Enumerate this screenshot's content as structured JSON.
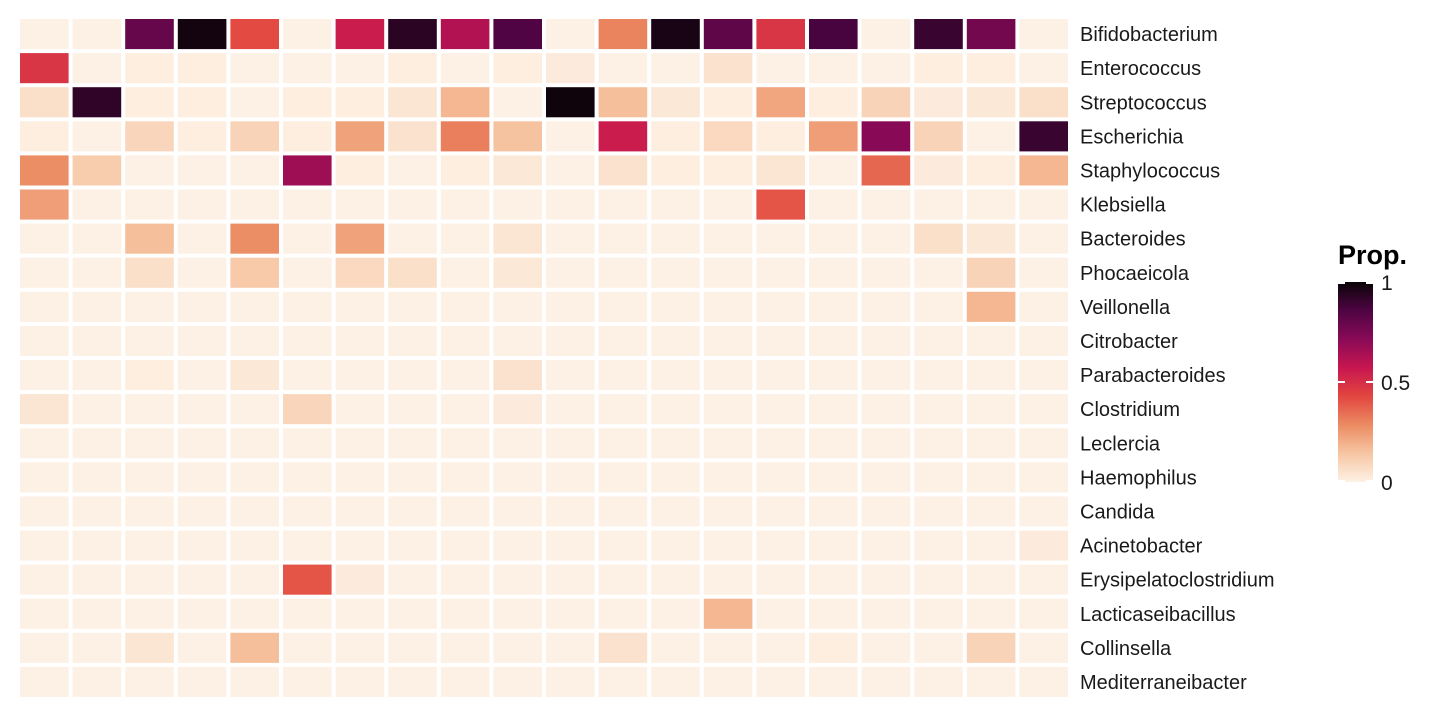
{
  "chart_data": {
    "type": "heatmap",
    "title": "",
    "xlabel": "",
    "ylabel": "",
    "rows": [
      "Bifidobacterium",
      "Enterococcus",
      "Streptococcus",
      "Escherichia",
      "Staphylococcus",
      "Klebsiella",
      "Bacteroides",
      "Phocaeicola",
      "Veillonella",
      "Citrobacter",
      "Parabacteroides",
      "Clostridium",
      "Leclercia",
      "Haemophilus",
      "Candida",
      "Acinetobacter",
      "Erysipelatoclostridium",
      "Lacticaseibacillus",
      "Collinsella",
      "Mediterraneibacter"
    ],
    "n_columns": 20,
    "values": [
      [
        0.0,
        0.0,
        0.8,
        0.98,
        0.42,
        0.0,
        0.55,
        0.93,
        0.62,
        0.85,
        0.0,
        0.3,
        0.97,
        0.82,
        0.48,
        0.87,
        0.0,
        0.9,
        0.77,
        0.0
      ],
      [
        0.48,
        0.0,
        0.01,
        0.01,
        0.0,
        0.0,
        0.0,
        0.01,
        0.0,
        0.01,
        0.02,
        0.0,
        0.0,
        0.05,
        0.0,
        0.0,
        0.0,
        0.01,
        0.01,
        0.0
      ],
      [
        0.06,
        0.92,
        0.01,
        0.01,
        0.0,
        0.01,
        0.01,
        0.04,
        0.18,
        0.0,
        0.99,
        0.16,
        0.03,
        0.01,
        0.22,
        0.01,
        0.1,
        0.02,
        0.03,
        0.06
      ],
      [
        0.01,
        0.0,
        0.09,
        0.01,
        0.1,
        0.01,
        0.23,
        0.05,
        0.31,
        0.15,
        0.0,
        0.55,
        0.01,
        0.08,
        0.01,
        0.24,
        0.72,
        0.1,
        0.0,
        0.9
      ],
      [
        0.28,
        0.12,
        0.0,
        0.0,
        0.0,
        0.67,
        0.01,
        0.0,
        0.01,
        0.03,
        0.0,
        0.05,
        0.01,
        0.01,
        0.04,
        0.0,
        0.36,
        0.02,
        0.01,
        0.18
      ],
      [
        0.24,
        0.0,
        0.0,
        0.0,
        0.0,
        0.0,
        0.0,
        0.0,
        0.0,
        0.0,
        0.0,
        0.0,
        0.0,
        0.0,
        0.4,
        0.0,
        0.0,
        0.0,
        0.0,
        0.0
      ],
      [
        0.0,
        0.0,
        0.16,
        0.0,
        0.28,
        0.0,
        0.23,
        0.0,
        0.0,
        0.04,
        0.0,
        0.0,
        0.0,
        0.0,
        0.0,
        0.0,
        0.0,
        0.06,
        0.03,
        0.0
      ],
      [
        0.0,
        0.0,
        0.06,
        0.0,
        0.13,
        0.0,
        0.08,
        0.06,
        0.0,
        0.03,
        0.0,
        0.0,
        0.0,
        0.0,
        0.0,
        0.0,
        0.0,
        0.0,
        0.1,
        0.0
      ],
      [
        0.0,
        0.0,
        0.0,
        0.0,
        0.0,
        0.0,
        0.0,
        0.0,
        0.0,
        0.0,
        0.0,
        0.0,
        0.0,
        0.0,
        0.0,
        0.0,
        0.0,
        0.0,
        0.18,
        0.0
      ],
      [
        0.0,
        0.0,
        0.0,
        0.0,
        0.0,
        0.0,
        0.0,
        0.0,
        0.0,
        0.0,
        0.0,
        0.0,
        0.0,
        0.0,
        0.0,
        0.0,
        0.0,
        0.0,
        0.0,
        0.0
      ],
      [
        0.0,
        0.0,
        0.01,
        0.0,
        0.03,
        0.0,
        0.0,
        0.0,
        0.0,
        0.05,
        0.0,
        0.0,
        0.0,
        0.0,
        0.0,
        0.0,
        0.0,
        0.0,
        0.0,
        0.0
      ],
      [
        0.04,
        0.0,
        0.0,
        0.0,
        0.0,
        0.09,
        0.0,
        0.0,
        0.0,
        0.02,
        0.0,
        0.0,
        0.0,
        0.0,
        0.0,
        0.0,
        0.0,
        0.0,
        0.0,
        0.0
      ],
      [
        0.0,
        0.0,
        0.0,
        0.0,
        0.0,
        0.0,
        0.0,
        0.0,
        0.0,
        0.0,
        0.0,
        0.0,
        0.0,
        0.0,
        0.0,
        0.0,
        0.0,
        0.0,
        0.0,
        0.0
      ],
      [
        0.0,
        0.0,
        0.0,
        0.0,
        0.0,
        0.0,
        0.0,
        0.0,
        0.0,
        0.0,
        0.0,
        0.0,
        0.0,
        0.0,
        0.0,
        0.0,
        0.0,
        0.0,
        0.0,
        0.0
      ],
      [
        0.0,
        0.0,
        0.0,
        0.0,
        0.0,
        0.0,
        0.0,
        0.0,
        0.0,
        0.0,
        0.0,
        0.0,
        0.0,
        0.0,
        0.0,
        0.0,
        0.0,
        0.0,
        0.0,
        0.0
      ],
      [
        0.0,
        0.0,
        0.0,
        0.0,
        0.0,
        0.0,
        0.0,
        0.0,
        0.0,
        0.0,
        0.0,
        0.0,
        0.0,
        0.0,
        0.0,
        0.0,
        0.0,
        0.0,
        0.0,
        0.02
      ],
      [
        0.0,
        0.0,
        0.0,
        0.0,
        0.0,
        0.4,
        0.02,
        0.0,
        0.0,
        0.0,
        0.0,
        0.0,
        0.0,
        0.0,
        0.0,
        0.0,
        0.0,
        0.0,
        0.0,
        0.0
      ],
      [
        0.0,
        0.0,
        0.0,
        0.0,
        0.0,
        0.0,
        0.0,
        0.0,
        0.0,
        0.0,
        0.0,
        0.0,
        0.0,
        0.18,
        0.0,
        0.0,
        0.0,
        0.0,
        0.0,
        0.0
      ],
      [
        0.0,
        0.0,
        0.04,
        0.0,
        0.16,
        0.0,
        0.0,
        0.0,
        0.0,
        0.0,
        0.0,
        0.05,
        0.0,
        0.0,
        0.0,
        0.01,
        0.0,
        0.0,
        0.1,
        0.0
      ],
      [
        0.0,
        0.0,
        0.0,
        0.0,
        0.0,
        0.0,
        0.0,
        0.0,
        0.0,
        0.0,
        0.0,
        0.0,
        0.0,
        0.0,
        0.0,
        0.0,
        0.0,
        0.0,
        0.0,
        0.0
      ]
    ],
    "value_range": [
      0,
      1
    ],
    "grid": false,
    "legend": {
      "title": "Prop.",
      "position": "right",
      "ticks": [
        0,
        0.5,
        1
      ],
      "tick_labels": [
        "0",
        "0.5",
        "1"
      ]
    },
    "colors": {
      "scale": [
        "#fdf1e5",
        "#f7c6a3",
        "#eb8b62",
        "#e24640",
        "#c7164f",
        "#8a0a57",
        "#4e0443",
        "#0a0407"
      ],
      "background": "#ffffff",
      "cell_border": "#ffffff"
    }
  }
}
